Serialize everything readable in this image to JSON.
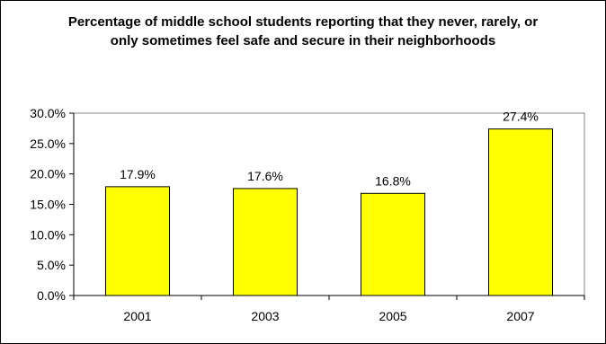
{
  "chart_data": {
    "type": "bar",
    "title": "Percentage of middle school students reporting that they never, rarely, or only sometimes feel safe and secure in their neighborhoods",
    "categories": [
      "2001",
      "2003",
      "2005",
      "2007"
    ],
    "values": [
      17.9,
      17.6,
      16.8,
      27.4
    ],
    "value_labels": [
      "17.9%",
      "17.6%",
      "16.8%",
      "27.4%"
    ],
    "y_ticks": [
      0,
      5,
      10,
      15,
      20,
      25,
      30
    ],
    "y_tick_labels": [
      "0.0%",
      "5.0%",
      "10.0%",
      "15.0%",
      "20.0%",
      "25.0%",
      "30.0%"
    ],
    "ylim": [
      0,
      30
    ],
    "xlabel": "",
    "ylabel": "",
    "grid": false,
    "legend": "none",
    "bar_color": "#FFFF00",
    "bar_edge_color": "#000000"
  }
}
